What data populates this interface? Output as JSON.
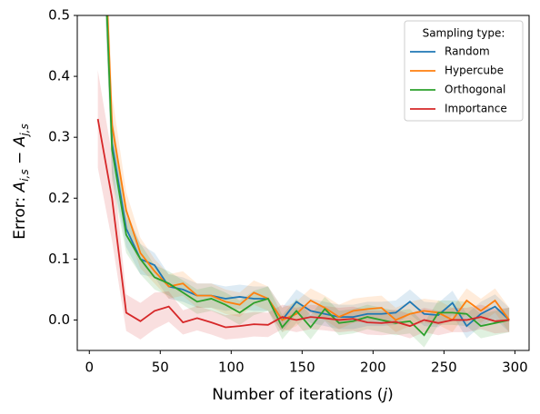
{
  "chart_data": {
    "type": "line",
    "x_label": [
      "Number of iterations (",
      "j",
      ")"
    ],
    "y_label": [
      "Error: ",
      "A",
      "i,s",
      " − ",
      "A",
      "j,s"
    ],
    "legend_title": "Sampling type:",
    "legend": "upper right",
    "x": [
      6,
      16,
      26,
      36,
      46,
      56,
      66,
      76,
      86,
      96,
      106,
      116,
      126,
      136,
      146,
      156,
      166,
      176,
      186,
      196,
      206,
      216,
      226,
      236,
      246,
      256,
      266,
      276,
      286,
      296
    ],
    "xlim": [
      -8.5,
      310
    ],
    "ylim": [
      -0.05,
      0.5
    ],
    "xticks": [
      0,
      50,
      100,
      150,
      200,
      250,
      300
    ],
    "yticks": [
      {
        "value": 0,
        "label": "0.0"
      },
      {
        "value": 0.1,
        "label": "0.1"
      },
      {
        "value": 0.2,
        "label": "0.2"
      },
      {
        "value": 0.3,
        "label": "0.3"
      },
      {
        "value": 0.4,
        "label": "0.4"
      },
      {
        "value": 0.5,
        "label": "0.5"
      }
    ],
    "series": [
      {
        "name": "Random",
        "color": "#1f77b4",
        "values": [
          0.9,
          0.29,
          0.15,
          0.1,
          0.09,
          0.055,
          0.05,
          0.04,
          0.04,
          0.035,
          0.038,
          0.035,
          0.035,
          0.0,
          0.03,
          0.015,
          0.01,
          0.005,
          0.005,
          0.01,
          0.01,
          0.012,
          0.03,
          0.01,
          0.008,
          0.028,
          -0.01,
          0.01,
          0.022,
          0.0
        ],
        "errors": [
          0.1,
          0.05,
          0.03,
          0.025,
          0.02,
          0.02,
          0.02,
          0.02,
          0.02,
          0.02,
          0.02,
          0.02,
          0.02,
          0.02,
          0.02,
          0.02,
          0.02,
          0.02,
          0.02,
          0.02,
          0.02,
          0.02,
          0.02,
          0.02,
          0.02,
          0.02,
          0.02,
          0.02,
          0.02,
          0.02
        ]
      },
      {
        "name": "Hypercube",
        "color": "#ff7f0e",
        "values": [
          0.9,
          0.32,
          0.18,
          0.11,
          0.08,
          0.055,
          0.06,
          0.04,
          0.04,
          0.03,
          0.025,
          0.045,
          0.035,
          0.0,
          0.01,
          0.032,
          0.02,
          0.005,
          0.015,
          0.018,
          0.02,
          0.0,
          0.01,
          0.015,
          0.012,
          0.0,
          0.032,
          0.015,
          0.032,
          0.0
        ],
        "errors": [
          0.1,
          0.05,
          0.03,
          0.025,
          0.02,
          0.02,
          0.02,
          0.02,
          0.02,
          0.02,
          0.02,
          0.02,
          0.02,
          0.02,
          0.02,
          0.02,
          0.02,
          0.02,
          0.02,
          0.02,
          0.02,
          0.02,
          0.02,
          0.02,
          0.02,
          0.02,
          0.02,
          0.02,
          0.02,
          0.02
        ]
      },
      {
        "name": "Orthogonal",
        "color": "#2ca02c",
        "values": [
          0.9,
          0.28,
          0.14,
          0.1,
          0.07,
          0.06,
          0.045,
          0.03,
          0.035,
          0.025,
          0.012,
          0.028,
          0.035,
          -0.012,
          0.015,
          -0.012,
          0.018,
          -0.005,
          -0.002,
          0.005,
          0.0,
          -0.005,
          -0.002,
          -0.025,
          0.012,
          0.012,
          0.01,
          -0.01,
          -0.005,
          0.0
        ],
        "errors": [
          0.1,
          0.05,
          0.03,
          0.025,
          0.02,
          0.02,
          0.02,
          0.02,
          0.02,
          0.02,
          0.02,
          0.02,
          0.02,
          0.02,
          0.02,
          0.02,
          0.02,
          0.02,
          0.02,
          0.02,
          0.02,
          0.02,
          0.02,
          0.02,
          0.02,
          0.02,
          0.02,
          0.02,
          0.02,
          0.02
        ]
      },
      {
        "name": "Importance",
        "color": "#d62728",
        "values": [
          0.33,
          0.2,
          0.012,
          -0.002,
          0.015,
          0.022,
          -0.004,
          0.003,
          -0.004,
          -0.012,
          -0.01,
          -0.007,
          -0.008,
          0.005,
          0.0,
          0.005,
          0.003,
          0.0,
          0.002,
          -0.004,
          -0.005,
          -0.003,
          -0.01,
          0.0,
          -0.005,
          0.0,
          0.0,
          0.005,
          -0.002,
          0.0
        ],
        "errors": [
          0.08,
          0.07,
          0.03,
          0.03,
          0.03,
          0.025,
          0.02,
          0.02,
          0.02,
          0.02,
          0.02,
          0.02,
          0.02,
          0.02,
          0.02,
          0.02,
          0.02,
          0.02,
          0.02,
          0.02,
          0.02,
          0.02,
          0.02,
          0.02,
          0.02,
          0.02,
          0.02,
          0.02,
          0.02,
          0.02
        ]
      }
    ]
  }
}
